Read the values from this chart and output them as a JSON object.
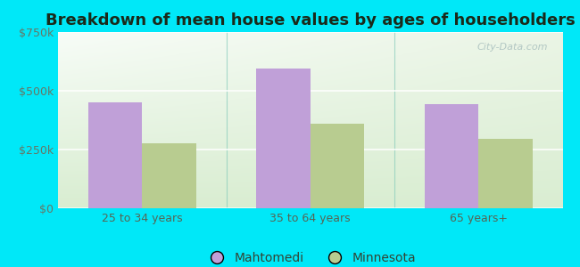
{
  "title": "Breakdown of mean house values by ages of householders",
  "categories": [
    "25 to 34 years",
    "35 to 64 years",
    "65 years+"
  ],
  "mahtomedi_values": [
    450000,
    595000,
    445000
  ],
  "minnesota_values": [
    278000,
    360000,
    295000
  ],
  "ylim": [
    0,
    750000
  ],
  "yticks": [
    0,
    250000,
    500000,
    750000
  ],
  "ytick_labels": [
    "$0",
    "$250k",
    "$500k",
    "$750k"
  ],
  "bar_color_mahtomedi": "#c0a0d8",
  "bar_color_minnesota": "#b8cc90",
  "legend_mahtomedi": "Mahtomedi",
  "legend_minnesota": "Minnesota",
  "bg_outer": "#00e8f8",
  "title_fontsize": 13,
  "tick_fontsize": 9,
  "legend_fontsize": 10,
  "bar_width": 0.32,
  "watermark": "City-Data.com"
}
